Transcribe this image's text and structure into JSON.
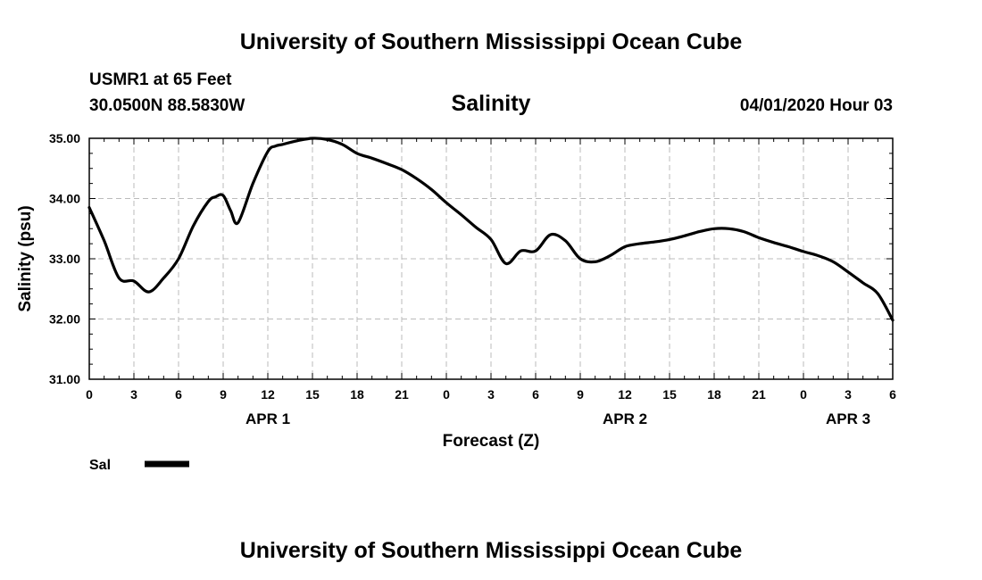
{
  "header": {
    "title": "University of Southern Mississippi Ocean Cube",
    "station": "USMR1 at 65 Feet",
    "location": "30.0500N 88.5830W",
    "variable": "Salinity",
    "datetime": "04/01/2020 Hour 03"
  },
  "footer": {
    "title": "University of Southern Mississippi Ocean Cube"
  },
  "chart_data": {
    "type": "line",
    "xlabel": "Forecast (Z)",
    "ylabel": "Salinity (psu)",
    "xlim": [
      0,
      54
    ],
    "ylim": [
      31.0,
      35.0
    ],
    "grid": true,
    "legend": "bottom-left",
    "x_ticks": [
      0,
      3,
      6,
      9,
      12,
      15,
      18,
      21,
      24,
      27,
      30,
      33,
      36,
      39,
      42,
      45,
      48,
      51,
      54
    ],
    "x_tick_labels": [
      "0",
      "3",
      "6",
      "9",
      "12",
      "15",
      "18",
      "21",
      "0",
      "3",
      "6",
      "9",
      "12",
      "15",
      "18",
      "21",
      "0",
      "3",
      "6"
    ],
    "y_ticks": [
      31.0,
      32.0,
      33.0,
      34.0,
      35.0
    ],
    "y_tick_labels": [
      "31.00",
      "32.00",
      "33.00",
      "34.00",
      "35.00"
    ],
    "day_labels": [
      {
        "x": 12,
        "text": "APR 1"
      },
      {
        "x": 36,
        "text": "APR 2"
      },
      {
        "x": 51,
        "text": "APR 3"
      }
    ],
    "series": [
      {
        "name": "Sal",
        "color": "#000000",
        "x": [
          0,
          1,
          2,
          3,
          4,
          5,
          6,
          7,
          8,
          8.5,
          9,
          9.5,
          10,
          11,
          12,
          12.5,
          13,
          14,
          15,
          16,
          17,
          18,
          19,
          20,
          21,
          22,
          23,
          24,
          25,
          26,
          27,
          28,
          29,
          30,
          31,
          32,
          33,
          34,
          35,
          36,
          37,
          38,
          39,
          40,
          41,
          42,
          43,
          44,
          45,
          46,
          47,
          48,
          49,
          50,
          51,
          52,
          53,
          54
        ],
        "y": [
          33.85,
          33.3,
          32.68,
          32.63,
          32.45,
          32.68,
          33.0,
          33.55,
          33.95,
          34.03,
          34.05,
          33.8,
          33.6,
          34.25,
          34.78,
          34.87,
          34.9,
          34.96,
          35.0,
          34.98,
          34.9,
          34.75,
          34.67,
          34.58,
          34.48,
          34.33,
          34.15,
          33.93,
          33.73,
          33.52,
          33.32,
          32.92,
          33.13,
          33.13,
          33.4,
          33.3,
          33.0,
          32.95,
          33.05,
          33.2,
          33.25,
          33.28,
          33.32,
          33.38,
          33.45,
          33.5,
          33.5,
          33.45,
          33.35,
          33.27,
          33.2,
          33.12,
          33.05,
          32.95,
          32.78,
          32.6,
          32.42,
          31.98
        ]
      }
    ]
  },
  "legend": {
    "label": "Sal"
  }
}
